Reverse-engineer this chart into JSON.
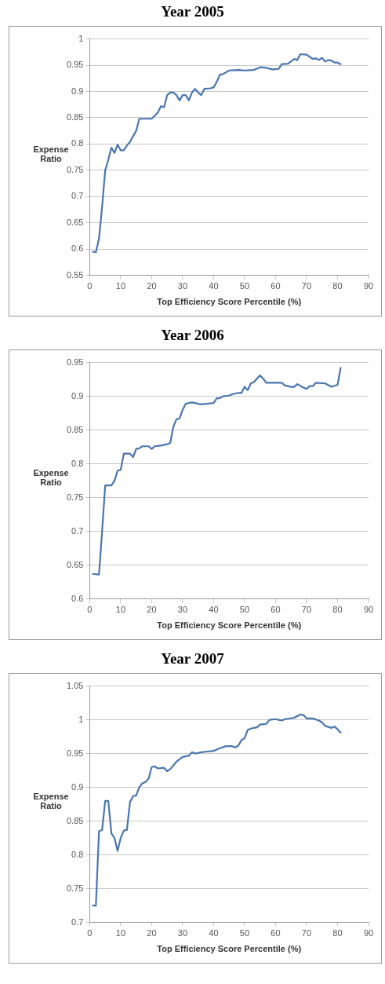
{
  "chart_data": [
    {
      "type": "line",
      "title": "Year 2005",
      "xlabel": "Top Efficiency Score Percentile (%)",
      "ylabel": "Expense Ratio",
      "xlim": [
        0,
        90
      ],
      "xticks": [
        0,
        10,
        20,
        30,
        40,
        50,
        60,
        70,
        80,
        90
      ],
      "ylim": [
        0.55,
        1
      ],
      "yticks": [
        0.55,
        0.6,
        0.65,
        0.7,
        0.75,
        0.8,
        0.85,
        0.9,
        0.95,
        1
      ],
      "grid": "y",
      "legend": false,
      "marker": "none",
      "line_style": "solid",
      "series": [
        {
          "color": "#4a76b0",
          "x": [
            1,
            2,
            3,
            4,
            5,
            6,
            7,
            8,
            9,
            10,
            11,
            12,
            13,
            14,
            15,
            16,
            18,
            20,
            22,
            23,
            24,
            25,
            26,
            27,
            28,
            29,
            30,
            31,
            32,
            33,
            34,
            35,
            36,
            37,
            39,
            40,
            41,
            42,
            43,
            45,
            48,
            50,
            53,
            55,
            57,
            59,
            61,
            62,
            64,
            66,
            67,
            68,
            70,
            72,
            73,
            74,
            75,
            76,
            77,
            78,
            79,
            80,
            81
          ],
          "values": [
            0.595,
            0.594,
            0.62,
            0.68,
            0.75,
            0.77,
            0.793,
            0.783,
            0.799,
            0.788,
            0.788,
            0.797,
            0.804,
            0.815,
            0.825,
            0.848,
            0.848,
            0.848,
            0.86,
            0.872,
            0.87,
            0.893,
            0.898,
            0.898,
            0.893,
            0.883,
            0.893,
            0.893,
            0.883,
            0.898,
            0.905,
            0.898,
            0.893,
            0.905,
            0.906,
            0.908,
            0.918,
            0.932,
            0.933,
            0.94,
            0.941,
            0.94,
            0.941,
            0.946,
            0.945,
            0.942,
            0.943,
            0.952,
            0.953,
            0.962,
            0.96,
            0.971,
            0.97,
            0.962,
            0.963,
            0.96,
            0.964,
            0.957,
            0.96,
            0.959,
            0.955,
            0.955,
            0.952
          ]
        }
      ]
    },
    {
      "type": "line",
      "title": "Year 2006",
      "xlabel": "Top Efficiency Score Percentile (%)",
      "ylabel": "Expense Ratio",
      "xlim": [
        0,
        90
      ],
      "xticks": [
        0,
        10,
        20,
        30,
        40,
        50,
        60,
        70,
        80,
        90
      ],
      "ylim": [
        0.6,
        0.95
      ],
      "yticks": [
        0.6,
        0.65,
        0.7,
        0.75,
        0.8,
        0.85,
        0.9,
        0.95
      ],
      "grid": "y",
      "legend": false,
      "marker": "none",
      "line_style": "solid",
      "series": [
        {
          "color": "#4a76b0",
          "x": [
            1,
            3,
            4,
            5,
            7,
            8,
            9,
            10,
            11,
            13,
            14,
            15,
            16,
            17,
            19,
            20,
            21,
            23,
            25,
            26,
            27,
            28,
            29,
            30,
            31,
            33,
            35,
            36,
            38,
            40,
            41,
            42,
            43,
            45,
            46,
            48,
            49,
            50,
            51,
            52,
            53,
            55,
            56,
            57,
            62,
            63,
            65,
            66,
            67,
            69,
            70,
            71,
            72,
            73,
            76,
            78,
            80,
            81
          ],
          "values": [
            0.637,
            0.636,
            0.7,
            0.768,
            0.768,
            0.775,
            0.79,
            0.791,
            0.815,
            0.815,
            0.81,
            0.822,
            0.823,
            0.826,
            0.826,
            0.822,
            0.826,
            0.827,
            0.829,
            0.831,
            0.855,
            0.866,
            0.867,
            0.88,
            0.889,
            0.891,
            0.889,
            0.888,
            0.889,
            0.89,
            0.897,
            0.897,
            0.9,
            0.901,
            0.903,
            0.905,
            0.905,
            0.914,
            0.909,
            0.919,
            0.921,
            0.931,
            0.926,
            0.92,
            0.92,
            0.916,
            0.914,
            0.914,
            0.918,
            0.913,
            0.911,
            0.915,
            0.915,
            0.92,
            0.919,
            0.914,
            0.917,
            0.942
          ]
        }
      ]
    },
    {
      "type": "line",
      "title": "Year 2007",
      "xlabel": "Top Efficiency Score Percentile (%)",
      "ylabel": "Expense Ratio",
      "xlim": [
        0,
        90
      ],
      "xticks": [
        0,
        10,
        20,
        30,
        40,
        50,
        60,
        70,
        80,
        90
      ],
      "ylim": [
        0.7,
        1.05
      ],
      "yticks": [
        0.7,
        0.75,
        0.8,
        0.85,
        0.9,
        0.95,
        1,
        1.05
      ],
      "grid": "y",
      "legend": false,
      "marker": "none",
      "line_style": "solid",
      "series": [
        {
          "color": "#4a76b0",
          "x": [
            1,
            2,
            3,
            4,
            5,
            6,
            7,
            8,
            9,
            10,
            11,
            12,
            13,
            14,
            15,
            16,
            17,
            18,
            19,
            20,
            21,
            22,
            24,
            25,
            26,
            28,
            30,
            32,
            33,
            34,
            36,
            38,
            40,
            42,
            44,
            46,
            47,
            48,
            49,
            50,
            51,
            52,
            54,
            55,
            57,
            58,
            60,
            61,
            62,
            63,
            66,
            68,
            69,
            70,
            72,
            74,
            75,
            76,
            78,
            79,
            80,
            81
          ],
          "values": [
            0.725,
            0.725,
            0.835,
            0.837,
            0.88,
            0.88,
            0.832,
            0.825,
            0.806,
            0.825,
            0.836,
            0.837,
            0.878,
            0.887,
            0.888,
            0.9,
            0.906,
            0.908,
            0.913,
            0.93,
            0.931,
            0.928,
            0.929,
            0.924,
            0.927,
            0.938,
            0.945,
            0.947,
            0.952,
            0.95,
            0.952,
            0.953,
            0.954,
            0.958,
            0.961,
            0.961,
            0.959,
            0.962,
            0.97,
            0.973,
            0.985,
            0.987,
            0.989,
            0.993,
            0.994,
            1.0,
            1.001,
            1.0,
            0.999,
            1.001,
            1.003,
            1.008,
            1.007,
            1.002,
            1.002,
            0.999,
            0.996,
            0.991,
            0.988,
            0.99,
            0.986,
            0.981
          ]
        }
      ]
    }
  ]
}
